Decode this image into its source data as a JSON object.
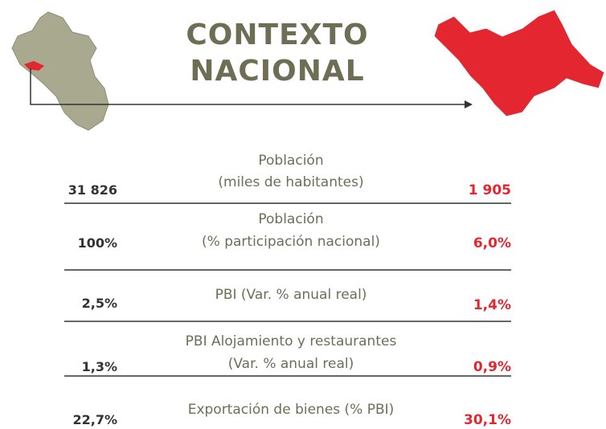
{
  "title": {
    "lines": [
      "CONTEXTO",
      "NACIONAL"
    ]
  },
  "rows": [
    {
      "label": [
        "Población",
        "(miles de habitantes)"
      ],
      "national": "31 826",
      "region": "1 905"
    },
    {
      "label": [
        "Población",
        "(% participación nacional)"
      ],
      "national": "100%",
      "region": "6,0%"
    },
    {
      "label": [
        "PBI (Var. % anual real)"
      ],
      "national": "2,5%",
      "region": "1,4%"
    },
    {
      "label": [
        "PBI Alojamiento y restaurantes",
        "(Var. % anual real)"
      ],
      "national": "1,3%",
      "region": "0,9%"
    },
    {
      "label": [
        "Exportación de bienes (% PBI)"
      ],
      "national": "22,7%",
      "region": "30,1%"
    }
  ]
}
